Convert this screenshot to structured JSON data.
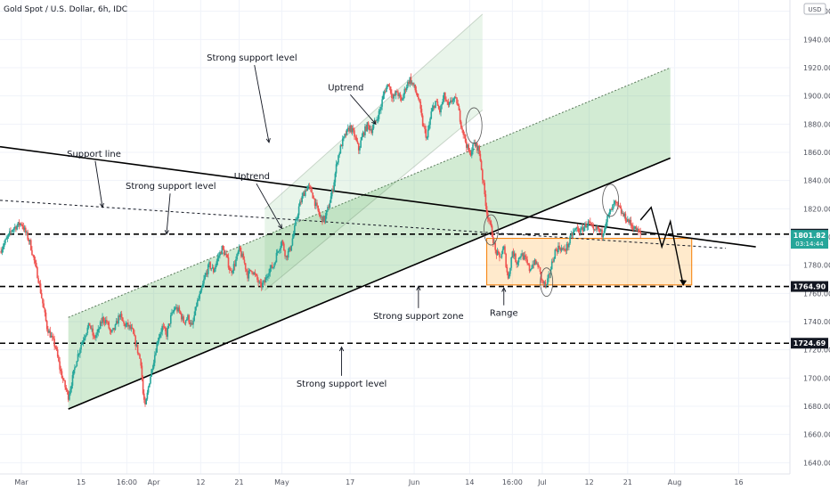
{
  "chart_data": {
    "type": "candlestick",
    "title": "Gold Spot / U.S. Dollar, 6h, IDC",
    "currency_badge": "USD",
    "y_axis": {
      "ticks": [
        1640,
        1660,
        1680,
        1700,
        1720,
        1740,
        1760,
        1780,
        1800,
        1820,
        1840,
        1860,
        1880,
        1900,
        1920,
        1940,
        1960
      ],
      "range": [
        1632,
        1968
      ]
    },
    "x_axis": {
      "labels": [
        {
          "label": "Mar",
          "t": 0
        },
        {
          "label": "15",
          "t": 14
        },
        {
          "label": "16:00",
          "t": 24.7
        },
        {
          "label": "Apr",
          "t": 31
        },
        {
          "label": "12",
          "t": 42
        },
        {
          "label": "21",
          "t": 51
        },
        {
          "label": "May",
          "t": 61
        },
        {
          "label": "17",
          "t": 77
        },
        {
          "label": "Jun",
          "t": 92
        },
        {
          "label": "14",
          "t": 105
        },
        {
          "label": "16:00",
          "t": 115
        },
        {
          "label": "Jul",
          "t": 122
        },
        {
          "label": "12",
          "t": 133
        },
        {
          "label": "21",
          "t": 142
        },
        {
          "label": "Aug",
          "t": 153
        },
        {
          "label": "16",
          "t": 168
        }
      ],
      "range": [
        -5,
        180
      ]
    },
    "price_path": [
      [
        -5,
        1790
      ],
      [
        -2,
        1806
      ],
      [
        0,
        1810
      ],
      [
        2,
        1796
      ],
      [
        4,
        1770
      ],
      [
        6,
        1736
      ],
      [
        8,
        1722
      ],
      [
        9,
        1707
      ],
      [
        10,
        1696
      ],
      [
        11,
        1687
      ],
      [
        12,
        1700
      ],
      [
        13,
        1714
      ],
      [
        14,
        1724
      ],
      [
        15,
        1732
      ],
      [
        16,
        1738
      ],
      [
        17,
        1728
      ],
      [
        18,
        1733
      ],
      [
        19,
        1742
      ],
      [
        20,
        1740
      ],
      [
        21,
        1731
      ],
      [
        22,
        1736
      ],
      [
        23,
        1745
      ],
      [
        24,
        1738
      ],
      [
        25,
        1737
      ],
      [
        26,
        1733
      ],
      [
        27,
        1722
      ],
      [
        28,
        1711
      ],
      [
        28.5,
        1689
      ],
      [
        29,
        1679
      ],
      [
        30,
        1698
      ],
      [
        31,
        1713
      ],
      [
        32,
        1728
      ],
      [
        33,
        1736
      ],
      [
        34,
        1731
      ],
      [
        35,
        1743
      ],
      [
        36,
        1750
      ],
      [
        37,
        1747
      ],
      [
        38,
        1740
      ],
      [
        39,
        1743
      ],
      [
        40,
        1736
      ],
      [
        41,
        1752
      ],
      [
        42,
        1760
      ],
      [
        43,
        1772
      ],
      [
        44,
        1780
      ],
      [
        45,
        1776
      ],
      [
        46,
        1785
      ],
      [
        47,
        1792
      ],
      [
        48,
        1786
      ],
      [
        49,
        1775
      ],
      [
        50,
        1781
      ],
      [
        51,
        1791
      ],
      [
        52,
        1784
      ],
      [
        53,
        1773
      ],
      [
        54,
        1777
      ],
      [
        55,
        1771
      ],
      [
        56,
        1765
      ],
      [
        57,
        1768
      ],
      [
        58,
        1777
      ],
      [
        59,
        1779
      ],
      [
        60,
        1790
      ],
      [
        61,
        1797
      ],
      [
        62,
        1786
      ],
      [
        63,
        1792
      ],
      [
        64,
        1806
      ],
      [
        65,
        1821
      ],
      [
        66,
        1830
      ],
      [
        67,
        1836
      ],
      [
        68,
        1832
      ],
      [
        69,
        1822
      ],
      [
        70,
        1814
      ],
      [
        71,
        1812
      ],
      [
        72,
        1822
      ],
      [
        73,
        1835
      ],
      [
        74,
        1855
      ],
      [
        75,
        1866
      ],
      [
        76,
        1873
      ],
      [
        77,
        1878
      ],
      [
        78,
        1872
      ],
      [
        79,
        1862
      ],
      [
        80,
        1873
      ],
      [
        81,
        1879
      ],
      [
        82,
        1876
      ],
      [
        83,
        1882
      ],
      [
        84,
        1890
      ],
      [
        85,
        1903
      ],
      [
        86,
        1909
      ],
      [
        87,
        1898
      ],
      [
        88,
        1903
      ],
      [
        89,
        1896
      ],
      [
        90,
        1906
      ],
      [
        91,
        1912
      ],
      [
        92,
        1906
      ],
      [
        93,
        1898
      ],
      [
        94,
        1880
      ],
      [
        95,
        1870
      ],
      [
        96,
        1888
      ],
      [
        97,
        1896
      ],
      [
        98,
        1889
      ],
      [
        99,
        1900
      ],
      [
        100,
        1892
      ],
      [
        101,
        1898
      ],
      [
        102,
        1896
      ],
      [
        103,
        1880
      ],
      [
        104,
        1868
      ],
      [
        105,
        1858
      ],
      [
        106,
        1866
      ],
      [
        107,
        1863
      ],
      [
        107.5,
        1855
      ],
      [
        108,
        1842
      ],
      [
        109,
        1818
      ],
      [
        110,
        1806
      ],
      [
        111,
        1790
      ],
      [
        112,
        1785
      ],
      [
        113,
        1792
      ],
      [
        114,
        1770
      ],
      [
        115,
        1790
      ],
      [
        116,
        1782
      ],
      [
        117,
        1788
      ],
      [
        118,
        1784
      ],
      [
        119,
        1777
      ],
      [
        120,
        1782
      ],
      [
        121,
        1780
      ],
      [
        122,
        1768
      ],
      [
        123,
        1765
      ],
      [
        124,
        1778
      ],
      [
        125,
        1790
      ],
      [
        126,
        1793
      ],
      [
        127,
        1790
      ],
      [
        128,
        1794
      ],
      [
        129,
        1802
      ],
      [
        130,
        1806
      ],
      [
        131,
        1804
      ],
      [
        132,
        1808
      ],
      [
        133,
        1810
      ],
      [
        134,
        1803
      ],
      [
        135,
        1806
      ],
      [
        136,
        1802
      ],
      [
        137,
        1812
      ],
      [
        138,
        1818
      ],
      [
        139,
        1824
      ],
      [
        140,
        1820
      ],
      [
        141,
        1815
      ],
      [
        142,
        1812
      ],
      [
        143,
        1808
      ],
      [
        144,
        1805
      ],
      [
        145,
        1801.82
      ]
    ],
    "horizontal_levels": [
      {
        "price": 1802.03,
        "label": "1802.03",
        "style": "dashed",
        "tag": "black"
      },
      {
        "price": 1764.9,
        "label": "1764.90",
        "style": "dashed",
        "tag": "black"
      },
      {
        "price": 1724.69,
        "label": "1724.69",
        "style": "dashed",
        "tag": "black"
      }
    ],
    "current_price": {
      "price": 1801.82,
      "label": "1801.82",
      "countdown": "03:14:44",
      "color": "#26a69a"
    },
    "trendlines": [
      {
        "name": "resistance-line",
        "from": [
          -5,
          1864
        ],
        "to": [
          172,
          1793
        ],
        "style": "solid",
        "color": "#000000"
      },
      {
        "name": "support-line",
        "from": [
          -5,
          1826
        ],
        "to": [
          165,
          1792
        ],
        "style": "dotted",
        "color": "#131722"
      },
      {
        "name": "rising-support-line",
        "from": [
          11,
          1678
        ],
        "to": [
          152,
          1856
        ],
        "style": "solid",
        "color": "#000000"
      }
    ],
    "channels": [
      {
        "name": "uptrend-channel-large",
        "upper": [
          [
            11,
            1743
          ],
          [
            152,
            1920
          ]
        ],
        "lower": [
          [
            11,
            1678
          ],
          [
            152,
            1856
          ]
        ],
        "fill": "#4caf50"
      },
      {
        "name": "uptrend-channel-small",
        "upper": [
          [
            57,
            1820
          ],
          [
            108,
            1958
          ]
        ],
        "lower": [
          [
            57,
            1762
          ],
          [
            108,
            1890
          ]
        ],
        "fill": "#66bb6a"
      }
    ],
    "range_box": {
      "t0": 109,
      "t1": 157,
      "p_top": 1799,
      "p_bottom": 1766,
      "color": "#ff9800"
    },
    "projection_path": [
      [
        145,
        1812
      ],
      [
        147.5,
        1821
      ],
      [
        150,
        1793
      ],
      [
        152,
        1811
      ],
      [
        155,
        1766
      ]
    ],
    "circles": [
      {
        "t": 106,
        "p": 1879,
        "rx": 9,
        "ry": 20
      },
      {
        "t": 110,
        "p": 1805,
        "rx": 8,
        "ry": 17
      },
      {
        "t": 123,
        "p": 1768,
        "rx": 7,
        "ry": 16
      },
      {
        "t": 138,
        "p": 1826,
        "rx": 9,
        "ry": 18
      }
    ],
    "annotations": [
      {
        "text": "Strong support level",
        "t": 54,
        "p": 1925,
        "arrow_to": [
          58,
          1867
        ]
      },
      {
        "text": "Uptrend",
        "t": 76,
        "p": 1904,
        "arrow_to": [
          83,
          1880
        ]
      },
      {
        "text": "Uptrend",
        "t": 54,
        "p": 1841,
        "arrow_to": [
          61,
          1806
        ]
      },
      {
        "text": "Support line",
        "t": 17,
        "p": 1857,
        "arrow_to": [
          19,
          1821
        ]
      },
      {
        "text": "Strong support level",
        "t": 35,
        "p": 1834,
        "arrow_to": [
          34,
          1802
        ]
      },
      {
        "text": "Strong support zone",
        "t": 93,
        "p": 1742,
        "arrow_to": [
          93,
          1765
        ]
      },
      {
        "text": "Range",
        "t": 113,
        "p": 1744,
        "arrow_to": [
          113,
          1764
        ]
      },
      {
        "text": "Strong support level",
        "t": 75,
        "p": 1694,
        "arrow_to": [
          75,
          1722
        ]
      }
    ]
  }
}
